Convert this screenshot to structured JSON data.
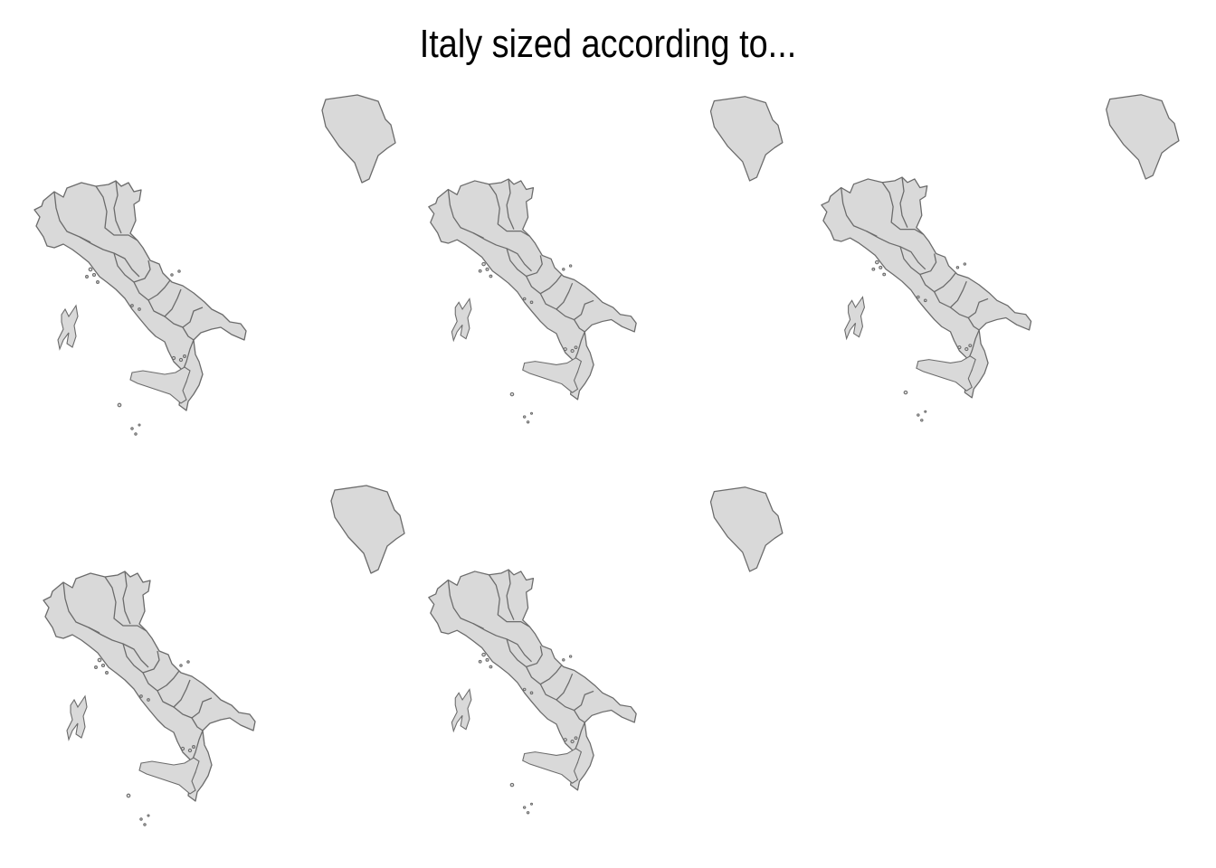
{
  "title": "Italy sized according to...",
  "fill_color": "#d9d9d9",
  "stroke_color": "#6b6b6b",
  "background": "#ffffff",
  "panels": [
    {
      "id": "map-1",
      "shape": "italy-cartogram"
    },
    {
      "id": "map-2",
      "shape": "italy-cartogram"
    },
    {
      "id": "map-3",
      "shape": "italy-cartogram"
    },
    {
      "id": "map-4",
      "shape": "italy-cartogram"
    },
    {
      "id": "map-5",
      "shape": "italy-cartogram"
    }
  ]
}
